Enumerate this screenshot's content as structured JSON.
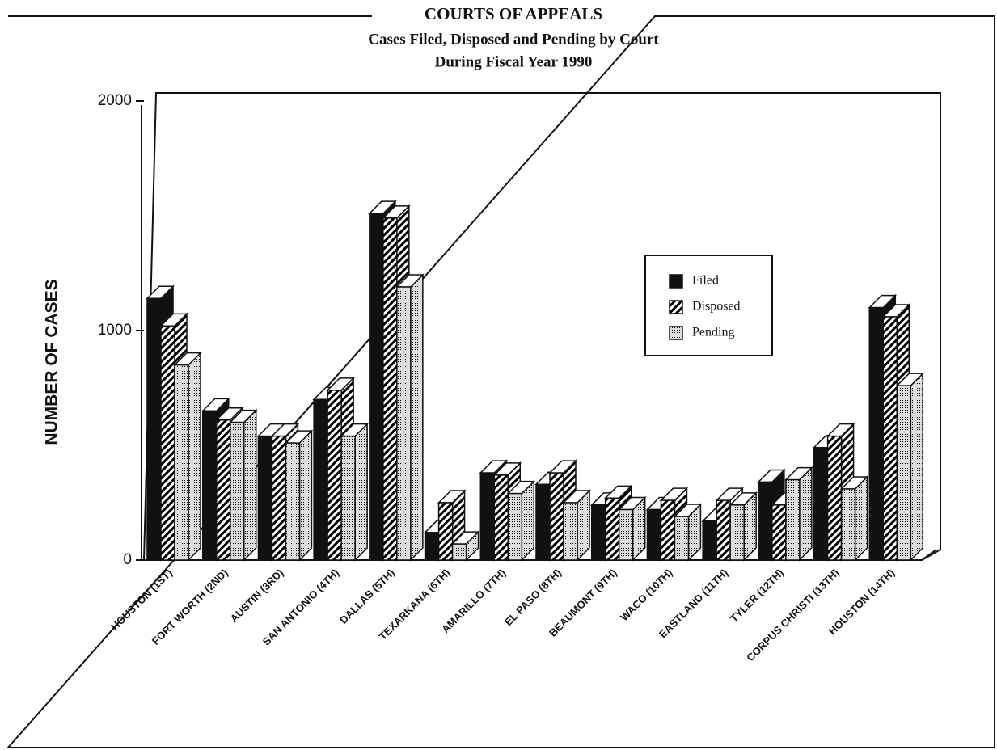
{
  "chart_data": {
    "type": "bar",
    "title": "COURTS OF APPEALS",
    "subtitle": [
      "Cases Filed, Disposed and Pending by Court",
      "During Fiscal Year 1990"
    ],
    "ylabel": "NUMBER OF CASES",
    "categories": [
      "HOUSTON (1ST)",
      "FORT WORTH (2ND)",
      "AUSTIN (3RD)",
      "SAN ANTONIO (4TH)",
      "DALLAS (5TH)",
      "TEXARKANA (6TH)",
      "AMARILLO (7TH)",
      "EL PASO (8TH)",
      "BEAUMONT (9TH)",
      "WACO (10TH)",
      "EASTLAND (11TH)",
      "TYLER (12TH)",
      "CORPUS CHRISTI (13TH)",
      "HOUSTON (14TH)"
    ],
    "series": [
      {
        "name": "Filed",
        "color": "#111111",
        "pattern": "solid",
        "values": [
          1140,
          650,
          540,
          700,
          1510,
          120,
          380,
          330,
          240,
          220,
          170,
          340,
          490,
          1100
        ]
      },
      {
        "name": "Disposed",
        "color": "#111111",
        "pattern": "hatch",
        "values": [
          1020,
          610,
          540,
          740,
          1490,
          250,
          370,
          380,
          270,
          260,
          260,
          240,
          540,
          1060
        ]
      },
      {
        "name": "Pending",
        "color": "#111111",
        "pattern": "dots",
        "values": [
          850,
          600,
          510,
          540,
          1190,
          70,
          290,
          250,
          220,
          190,
          240,
          350,
          310,
          760
        ]
      }
    ],
    "ylim": [
      0,
      2000
    ],
    "yticks": [
      0,
      1000,
      2000
    ],
    "legend": "upper right"
  }
}
